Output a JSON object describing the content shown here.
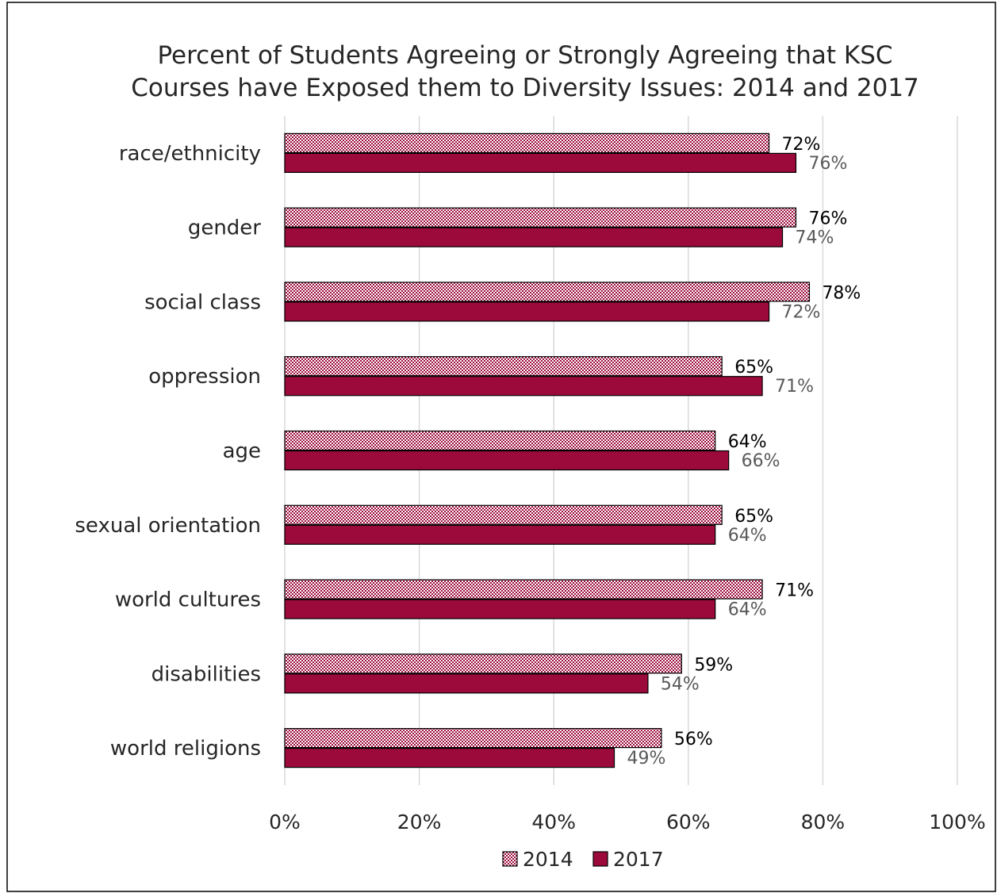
{
  "chart_data": {
    "type": "bar",
    "orientation": "horizontal",
    "title": "Percent of Students Agreeing or Strongly Agreeing that KSC Courses have Exposed them to Diversity Issues: 2014 and 2017",
    "title_lines": [
      "Percent of Students Agreeing or Strongly Agreeing that KSC",
      "Courses have Exposed them to Diversity Issues: 2014 and 2017"
    ],
    "categories": [
      "race/ethnicity",
      "gender",
      "social class",
      "oppression",
      "age",
      "sexual orientation",
      "world cultures",
      "disabilities",
      "world religions"
    ],
    "series": [
      {
        "name": "2014",
        "values": [
          72,
          76,
          78,
          65,
          64,
          65,
          71,
          59,
          56
        ],
        "labels": [
          "72%",
          "76%",
          "78%",
          "65%",
          "64%",
          "65%",
          "71%",
          "59%",
          "56%"
        ],
        "color": "#9b0a3a",
        "pattern": "checker"
      },
      {
        "name": "2017",
        "values": [
          76,
          74,
          72,
          71,
          66,
          64,
          64,
          54,
          49
        ],
        "labels": [
          "76%",
          "74%",
          "72%",
          "71%",
          "66%",
          "64%",
          "64%",
          "54%",
          "49%"
        ],
        "color": "#9b0a3a",
        "pattern": "solid"
      }
    ],
    "xlim": [
      0,
      100
    ],
    "xticks": [
      "0%",
      "20%",
      "40%",
      "60%",
      "80%",
      "100%"
    ],
    "grid": true,
    "legend_position": "bottom"
  }
}
